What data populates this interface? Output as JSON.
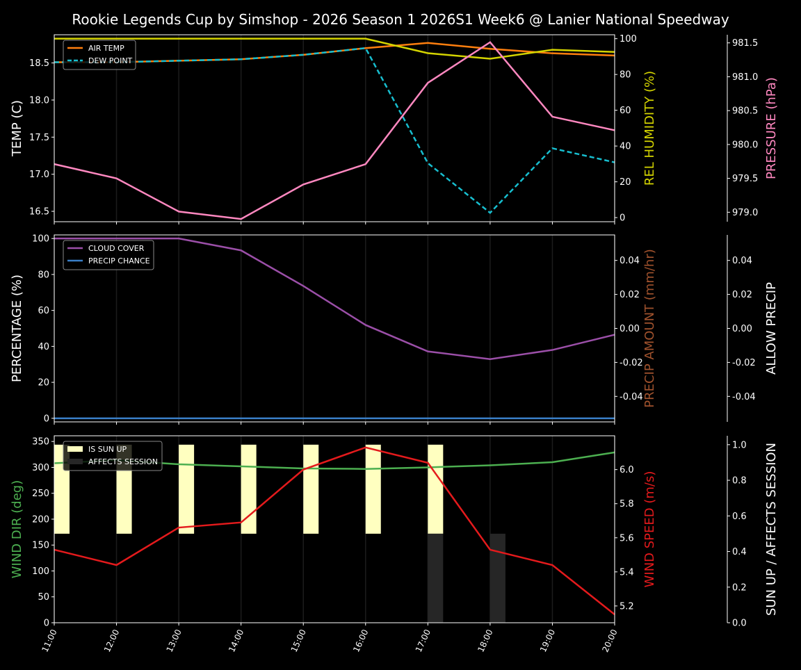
{
  "title": "Rookie Legends Cup by Simshop - 2026 Season 1 2026S1 Week6 @ Lanier National Speedway",
  "chart_data": [
    {
      "type": "line",
      "panel": "top",
      "x": [
        "11:00",
        "12:00",
        "13:00",
        "14:00",
        "15:00",
        "16:00",
        "17:00",
        "18:00",
        "19:00",
        "20:00"
      ],
      "axes": [
        {
          "id": "temp",
          "label": "TEMP (C)",
          "label_color": "#ffffff",
          "ylim": [
            16.36,
            18.88
          ],
          "ticks": [
            16.5,
            17.0,
            17.5,
            18.0,
            18.5
          ],
          "tick_format": 1,
          "side": "left"
        },
        {
          "id": "rh",
          "label": "REL HUMIDITY (%)",
          "label_color": "#d4d400",
          "ylim": [
            -2.3,
            102.2
          ],
          "ticks": [
            0,
            20,
            40,
            60,
            80,
            100
          ],
          "tick_format": 0,
          "side": "right"
        },
        {
          "id": "pres",
          "label": "PRESSURE (hPa)",
          "label_color": "#ff88c0",
          "ylim": [
            978.86,
            981.62
          ],
          "ticks": [
            979.0,
            979.5,
            980.0,
            980.5,
            981.0,
            981.5
          ],
          "tick_format": 1,
          "side": "far-right"
        }
      ],
      "series": [
        {
          "name": "AIR TEMP",
          "axis": "temp",
          "color": "#ff7f0e",
          "dash": false,
          "legend": true,
          "values": [
            18.51,
            18.51,
            18.53,
            18.55,
            18.61,
            18.7,
            18.77,
            18.69,
            18.63,
            18.6
          ]
        },
        {
          "name": "DEW POINT",
          "axis": "temp",
          "color": "#17becf",
          "dash": true,
          "legend": true,
          "values": [
            18.51,
            18.51,
            18.53,
            18.55,
            18.61,
            18.7,
            17.15,
            16.48,
            17.35,
            17.16
          ]
        },
        {
          "axis": "rh",
          "color": "#d4d400",
          "dash": false,
          "legend": false,
          "values": [
            100,
            100,
            100,
            100,
            100,
            100,
            91.9,
            88.8,
            93.8,
            92.6
          ]
        },
        {
          "axis": "pres",
          "color": "#ff88c0",
          "dash": false,
          "legend": false,
          "values": [
            979.71,
            979.5,
            979.01,
            978.9,
            979.41,
            979.71,
            980.91,
            981.51,
            980.41,
            980.21
          ]
        }
      ],
      "legend": "top-left",
      "grid": "vertical"
    },
    {
      "type": "line",
      "panel": "middle",
      "x": [
        "11:00",
        "12:00",
        "13:00",
        "14:00",
        "15:00",
        "16:00",
        "17:00",
        "18:00",
        "19:00",
        "20:00"
      ],
      "axes": [
        {
          "id": "pct",
          "label": "PERCENTAGE (%)",
          "label_color": "#ffffff",
          "ylim": [
            -2,
            102
          ],
          "ticks": [
            0,
            20,
            40,
            60,
            80,
            100
          ],
          "tick_format": 0,
          "side": "left"
        },
        {
          "id": "amt",
          "label": "PRECIP AMOUNT (mm/hr)",
          "label_color": "#a0522d",
          "ylim": [
            -0.055,
            0.055
          ],
          "ticks": [
            -0.04,
            -0.02,
            0.0,
            0.02,
            0.04
          ],
          "tick_format": 2,
          "side": "right"
        },
        {
          "id": "allow",
          "label": "ALLOW PRECIP",
          "label_color": "#ffffff",
          "ylim": [
            -0.055,
            0.055
          ],
          "ticks": [
            -0.04,
            -0.02,
            0.0,
            0.02,
            0.04
          ],
          "tick_format": 2,
          "side": "far-right"
        }
      ],
      "series": [
        {
          "name": "CLOUD COVER",
          "axis": "pct",
          "color": "#9b4fa8",
          "dash": false,
          "legend": true,
          "values": [
            100,
            100,
            100,
            93.4,
            73.6,
            51.9,
            37.2,
            32.9,
            38.0,
            46.5
          ]
        },
        {
          "name": "PRECIP CHANCE",
          "axis": "pct",
          "color": "#3a7fc8",
          "dash": false,
          "legend": true,
          "values": [
            0,
            0,
            0,
            0,
            0,
            0,
            0,
            0,
            0,
            0
          ]
        }
      ],
      "legend": "top-left",
      "grid": "vertical"
    },
    {
      "type": "line",
      "panel": "bottom",
      "x": [
        "11:00",
        "12:00",
        "13:00",
        "14:00",
        "15:00",
        "16:00",
        "17:00",
        "18:00",
        "19:00",
        "20:00"
      ],
      "axes": [
        {
          "id": "dir",
          "label": "WIND DIR (deg)",
          "label_color": "#4caf50",
          "ylim": [
            0,
            361
          ],
          "ticks": [
            0,
            50,
            100,
            150,
            200,
            250,
            300,
            350
          ],
          "tick_format": 0,
          "side": "left"
        },
        {
          "id": "spd",
          "label": "WIND SPEED (m/s)",
          "label_color": "#e41a1c",
          "ylim": [
            5.1016,
            6.1984
          ],
          "ticks": [
            5.2,
            5.4,
            5.6,
            5.8,
            6.0
          ],
          "tick_format": 1,
          "side": "right"
        },
        {
          "id": "sun",
          "label": "SUN UP / AFFECTS SESSION",
          "label_color": "#ffffff",
          "ylim": [
            0,
            1.05
          ],
          "ticks": [
            0.0,
            0.2,
            0.4,
            0.6,
            0.8,
            1.0
          ],
          "tick_format": 1,
          "side": "far-right"
        }
      ],
      "bars": [
        {
          "name": "IS SUN UP",
          "axis": "sun",
          "color": "#ffffc0",
          "base": 0.5,
          "values": [
            0.5,
            0.5,
            0.5,
            0.5,
            0.5,
            0.5,
            0.5,
            0,
            0,
            0
          ]
        },
        {
          "name": "AFFECTS SESSION",
          "axis": "sun",
          "color": "#262626",
          "base": 0,
          "values": [
            0,
            0,
            0,
            0,
            0,
            0,
            0.5,
            0.5,
            0,
            0
          ]
        }
      ],
      "series": [
        {
          "axis": "dir",
          "color": "#4caf50",
          "dash": false,
          "legend": false,
          "values": [
            308,
            314,
            306,
            302,
            298,
            297,
            300,
            304,
            310,
            329
          ]
        },
        {
          "axis": "spd",
          "color": "#e41a1c",
          "dash": false,
          "legend": false,
          "values": [
            5.53,
            5.44,
            5.66,
            5.69,
            6.0,
            6.13,
            6.04,
            5.53,
            5.44,
            5.15
          ]
        }
      ],
      "legend": "top-left",
      "grid": "vertical"
    }
  ]
}
